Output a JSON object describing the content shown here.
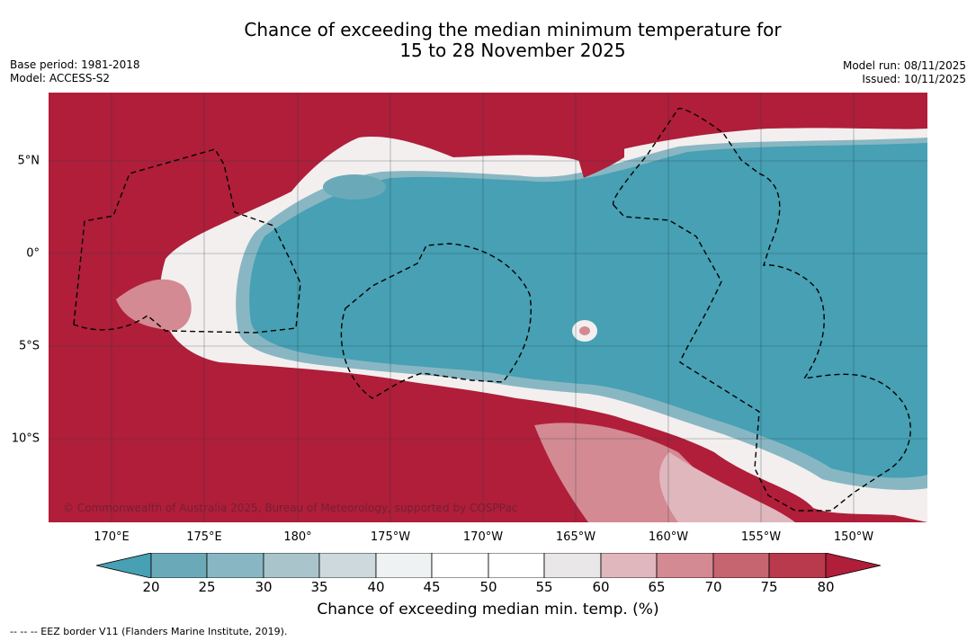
{
  "title_line1": "Chance of exceeding the median minimum temperature for",
  "title_line2": "15 to 28 November 2025",
  "base_period": "Base period: 1981-2018",
  "model": "Model: ACCESS-S2",
  "model_run": "Model run: 08/11/2025",
  "issued": "Issued: 10/11/2025",
  "copyright": "© Commonwealth of Australia 2025, Bureau of Meteorology, supported by COSPPac",
  "lon_labels": [
    "170°E",
    "175°E",
    "180°",
    "175°W",
    "170°W",
    "165°W",
    "160°W",
    "155°W",
    "150°W"
  ],
  "lat_labels": [
    "5°N",
    "0°",
    "5°S",
    "10°S"
  ],
  "colorbar_ticks": [
    "20",
    "25",
    "30",
    "35",
    "40",
    "45",
    "50",
    "55",
    "60",
    "65",
    "70",
    "75",
    "80"
  ],
  "colorbar_label": "Chance of exceeding median min. temp. (%)",
  "footnote": "--  --  -- EEZ border V11 (Flanders Marine Institute, 2019).",
  "colors": {
    "high": "#b01e3a",
    "low": "#47a0b3",
    "bins": [
      "#47a0b3",
      "#6aaab8",
      "#88b7c3",
      "#a9c5cb",
      "#cdd9dc",
      "#eef2f3",
      "#ffffff",
      "#ffffff",
      "#e9e7e8",
      "#dfb7bd",
      "#d38a93",
      "#c66470",
      "#b83a4c",
      "#b01e3a"
    ]
  }
}
